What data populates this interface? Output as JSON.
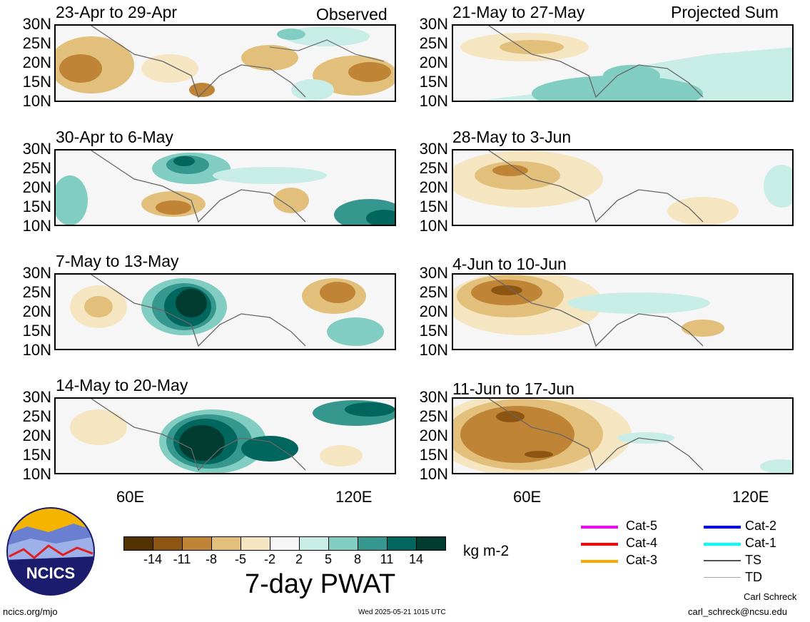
{
  "left_tag": "Observed",
  "right_tag": "Projected Sum",
  "panels_left": [
    {
      "title": "23-Apr to 29-Apr"
    },
    {
      "title": "30-Apr to 6-May"
    },
    {
      "title": "7-May to 13-May"
    },
    {
      "title": "14-May to 20-May"
    }
  ],
  "panels_right": [
    {
      "title": "21-May to 27-May"
    },
    {
      "title": "28-May to 3-Jun"
    },
    {
      "title": "4-Jun to 10-Jun"
    },
    {
      "title": "11-Jun to 17-Jun"
    }
  ],
  "lat_labels": [
    "30N",
    "25N",
    "20N",
    "15N",
    "10N"
  ],
  "lon_labels": [
    "60E",
    "120E"
  ],
  "colorbar": {
    "colors": [
      "#533202",
      "#8c5511",
      "#bf8436",
      "#e2c07c",
      "#f5e5c1",
      "#f6f6f6",
      "#c8ece6",
      "#81cdc1",
      "#36978f",
      "#01665e",
      "#003c30"
    ],
    "ticks": [
      "-14",
      "-11",
      "-8",
      "-5",
      "-2",
      "2",
      "5",
      "8",
      "11",
      "14"
    ],
    "units": "kg m-2",
    "title": "7-day PWAT"
  },
  "legend": [
    {
      "label": "Cat-5",
      "color": "#ff00ff"
    },
    {
      "label": "Cat-4",
      "color": "#ff0000"
    },
    {
      "label": "Cat-3",
      "color": "#ffa500"
    },
    {
      "label": "Cat-2",
      "color": "#0000ff"
    },
    {
      "label": "Cat-1",
      "color": "#00ffff"
    },
    {
      "label": "TS",
      "color": "#555555"
    },
    {
      "label": "TD",
      "color": "#aaaaaa"
    }
  ],
  "logo_text": "NCICS",
  "footer": {
    "url": "ncics.org/mjo",
    "timestamp": "Wed 2025-05-21 1015 UTC",
    "author": "Carl Schreck",
    "email": "carl_schreck@ncsu.edu"
  }
}
